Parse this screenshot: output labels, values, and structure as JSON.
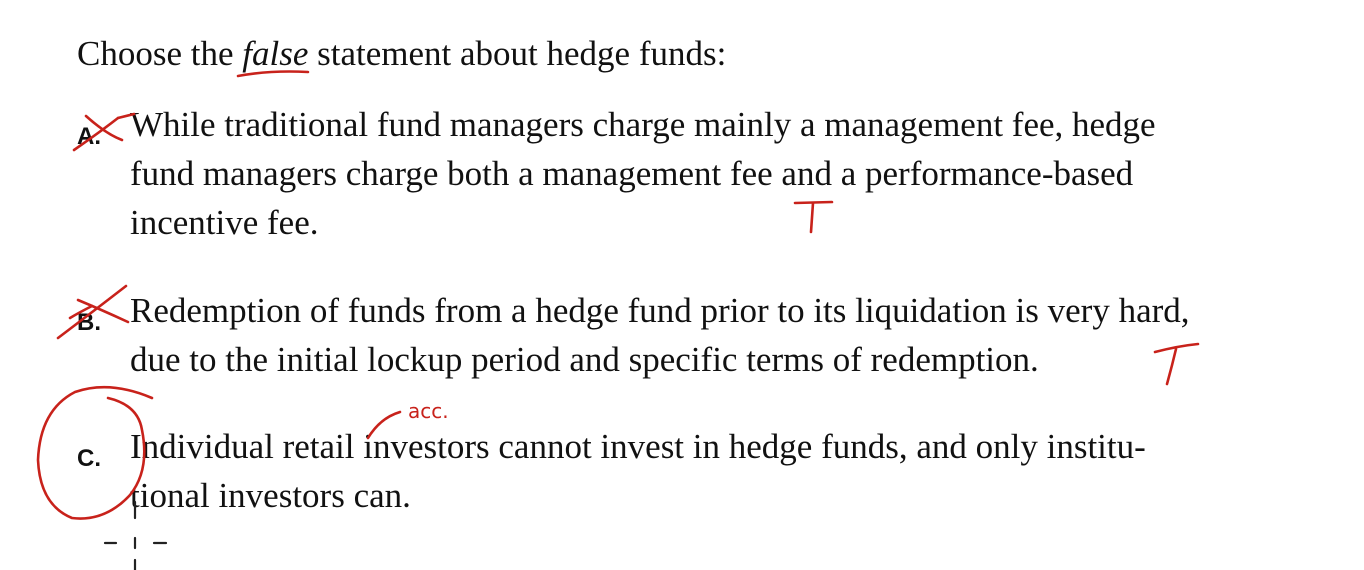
{
  "question": {
    "prefix": "Choose the",
    "emphasis": "false",
    "suffix": "statement about hedge funds:"
  },
  "options": [
    {
      "letter": "A.",
      "lines": [
        "While traditional fund managers charge mainly a management fee, hedge",
        "fund managers charge both a management fee and a performance-based",
        "incentive fee."
      ]
    },
    {
      "letter": "B.",
      "lines": [
        "Redemption of funds from a hedge fund prior to its liquidation is very hard,",
        "due to the initial lockup period and specific terms of redemption."
      ]
    },
    {
      "letter": "C.",
      "lines": [
        "Individual retail investors cannot invest in hedge funds, and only institu-",
        "tional investors can."
      ]
    }
  ],
  "annotations": {
    "mark_a": "T",
    "mark_b": "T",
    "insert_note": "acc.",
    "ink_color": "#c8221b"
  }
}
